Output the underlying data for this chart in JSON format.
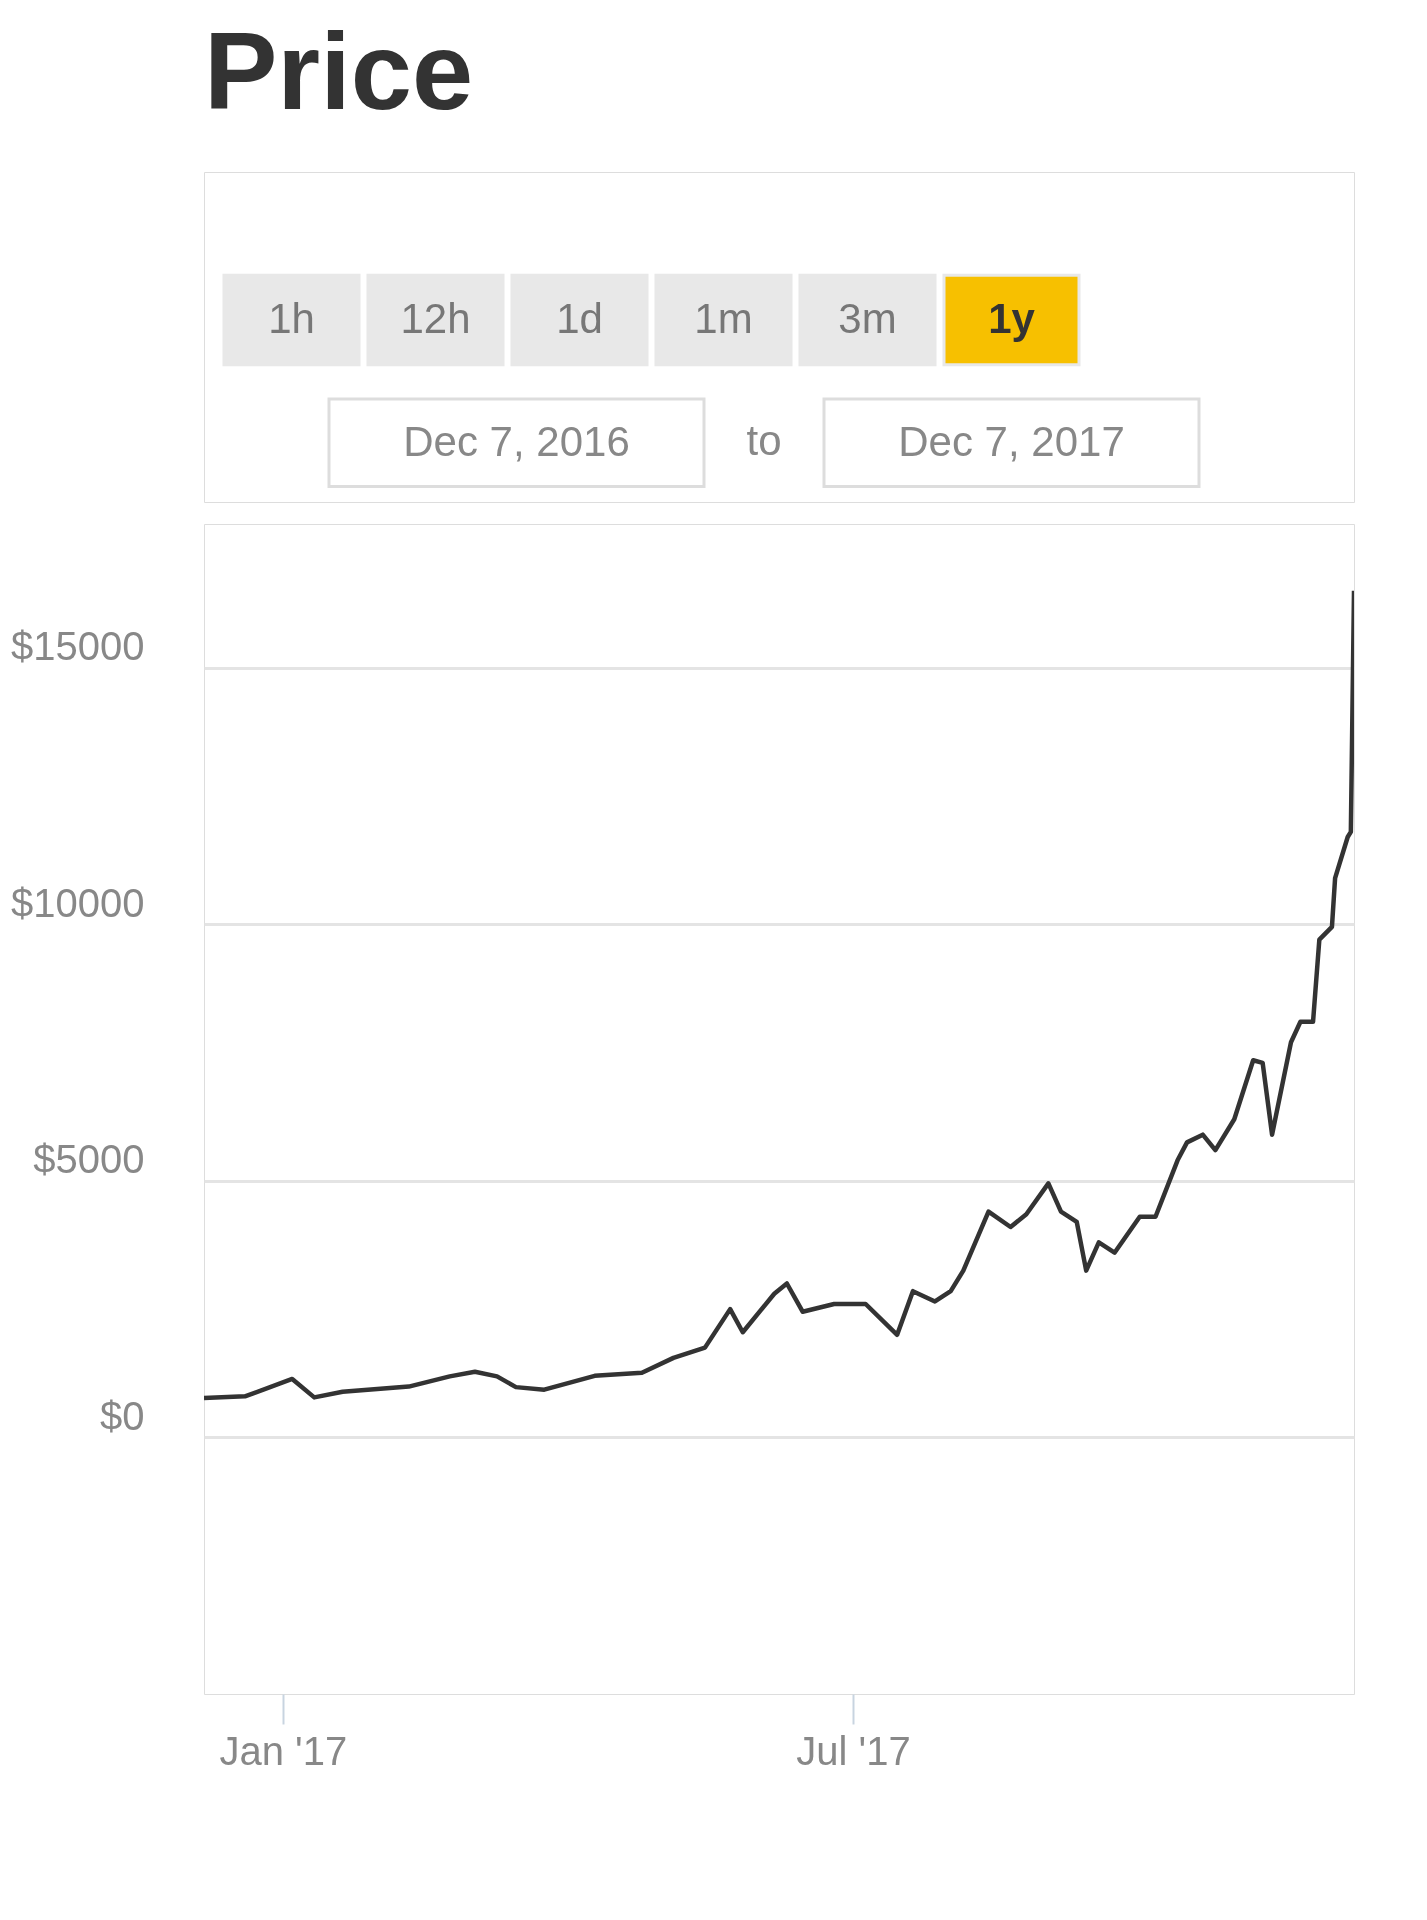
{
  "chart_data": {
    "type": "line",
    "title": "Price",
    "annotations": [
      "1h",
      "12h",
      "1d",
      "1m",
      "3m",
      "1y",
      "Dec 7, 2016",
      "to",
      "Dec 7, 2017"
    ],
    "x": [
      "2016-12-07",
      "2016-12-20",
      "2017-01-04",
      "2017-01-11",
      "2017-01-20",
      "2017-02-10",
      "2017-02-23",
      "2017-03-03",
      "2017-03-10",
      "2017-03-16",
      "2017-03-25",
      "2017-04-10",
      "2017-04-25",
      "2017-05-05",
      "2017-05-15",
      "2017-05-23",
      "2017-05-27",
      "2017-06-06",
      "2017-06-10",
      "2017-06-15",
      "2017-06-25",
      "2017-07-05",
      "2017-07-15",
      "2017-07-20",
      "2017-07-27",
      "2017-08-01",
      "2017-08-05",
      "2017-08-13",
      "2017-08-20",
      "2017-08-25",
      "2017-09-01",
      "2017-09-05",
      "2017-09-10",
      "2017-09-13",
      "2017-09-17",
      "2017-09-22",
      "2017-09-30",
      "2017-10-05",
      "2017-10-12",
      "2017-10-15",
      "2017-10-20",
      "2017-10-24",
      "2017-10-30",
      "2017-11-05",
      "2017-11-08",
      "2017-11-11",
      "2017-11-17",
      "2017-11-20",
      "2017-11-24",
      "2017-11-26",
      "2017-11-30",
      "2017-12-01",
      "2017-12-05",
      "2017-12-06",
      "2017-12-07"
    ],
    "series": [
      {
        "color": "#333333",
        "values": [
          770,
          800,
          1140,
          780,
          890,
          990,
          1190,
          1280,
          1190,
          980,
          930,
          1200,
          1260,
          1550,
          1750,
          2500,
          2050,
          2800,
          3000,
          2450,
          2600,
          2600,
          2000,
          2850,
          2650,
          2850,
          3250,
          4400,
          4100,
          4350,
          4950,
          4400,
          4200,
          3250,
          3800,
          3600,
          4300,
          4300,
          5400,
          5750,
          5900,
          5600,
          6200,
          7350,
          7300,
          5900,
          7700,
          8100,
          8100,
          9700,
          9950,
          10900,
          11700,
          11800,
          16500
        ]
      }
    ],
    "xlim": [
      "2016-12-07",
      "2017-12-07"
    ],
    "xticks": [
      {
        "value": "2017-01-01",
        "label": "Jan '17"
      },
      {
        "value": "2017-07-01",
        "label": "Jul '17"
      }
    ],
    "ylim": [
      -5000,
      17800
    ],
    "yticks": [
      {
        "value": 0,
        "label": "$0"
      },
      {
        "value": 5000,
        "label": "$5000"
      },
      {
        "value": 10000,
        "label": "$10000"
      },
      {
        "value": 15000,
        "label": "$15000"
      }
    ],
    "grid": "y",
    "marker": "none",
    "line_style": "solid"
  }
}
